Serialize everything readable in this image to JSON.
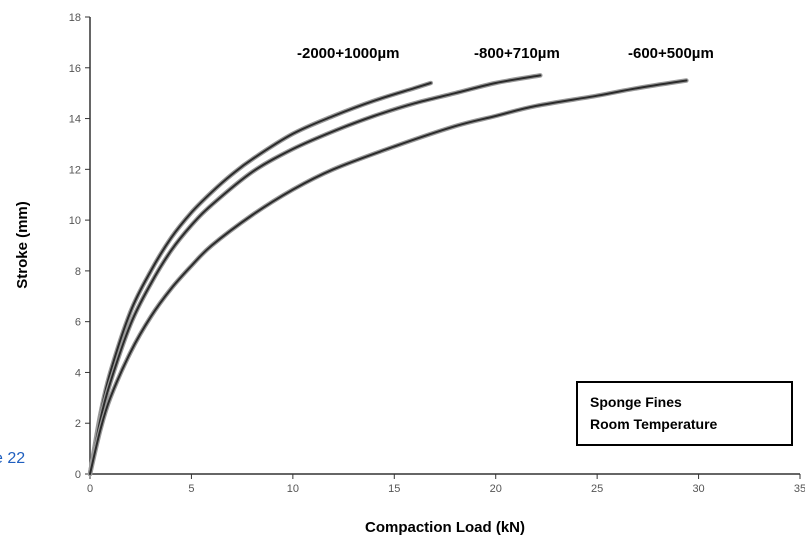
{
  "side_fragment": "e 22",
  "chart_data": {
    "type": "line",
    "title": "",
    "xlabel": "Compaction Load (kN)",
    "ylabel": "Stroke (mm)",
    "xlim": [
      0,
      35
    ],
    "ylim": [
      0,
      18
    ],
    "x_ticks": [
      "0",
      "5",
      "10",
      "15",
      "20",
      "25",
      "30",
      "35"
    ],
    "y_ticks": [
      "0",
      "2",
      "4",
      "6",
      "8",
      "10",
      "12",
      "14",
      "16",
      "18"
    ],
    "grid": false,
    "legend": "none",
    "annotation_box": {
      "lines": [
        "Sponge Fines",
        "Room Temperature"
      ],
      "placement": "bottom-right"
    },
    "series_color": "#2b2b2b",
    "series": [
      {
        "name": "-2000+1000µm",
        "x": [
          0,
          0.5,
          1,
          2,
          3,
          4,
          5,
          6,
          7,
          8,
          10,
          12,
          14,
          16,
          16.8
        ],
        "y": [
          0,
          2.3,
          4.0,
          6.4,
          8.0,
          9.3,
          10.3,
          11.1,
          11.8,
          12.4,
          13.4,
          14.1,
          14.7,
          15.2,
          15.4
        ]
      },
      {
        "name": "-800+710µm",
        "x": [
          0,
          0.5,
          1,
          2,
          3,
          4,
          5,
          6,
          8,
          10,
          12,
          14,
          16,
          18,
          20,
          22.2
        ],
        "y": [
          0,
          2.1,
          3.6,
          5.9,
          7.5,
          8.8,
          9.8,
          10.6,
          11.9,
          12.8,
          13.5,
          14.1,
          14.6,
          15.0,
          15.4,
          15.7
        ]
      },
      {
        "name": "-600+500µm",
        "x": [
          0,
          0.5,
          1,
          2,
          3,
          4,
          5,
          6,
          8,
          10,
          12,
          15,
          18,
          20,
          22,
          25,
          27,
          29.4
        ],
        "y": [
          0,
          1.7,
          3.0,
          4.8,
          6.2,
          7.3,
          8.2,
          9.0,
          10.2,
          11.2,
          12.0,
          12.9,
          13.7,
          14.1,
          14.5,
          14.9,
          15.2,
          15.5
        ]
      }
    ]
  }
}
